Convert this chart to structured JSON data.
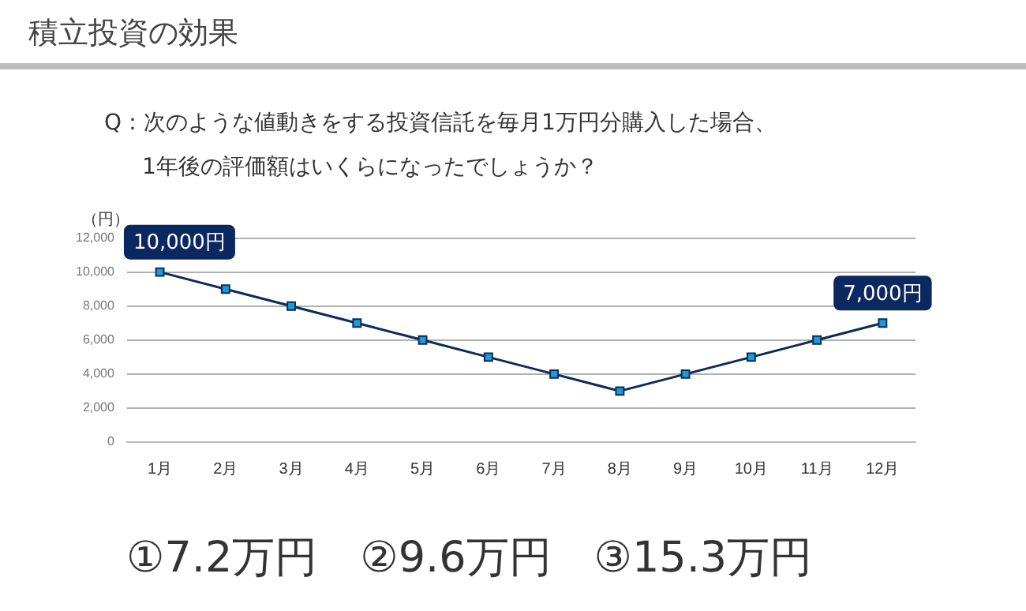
{
  "chart_data": {
    "type": "line",
    "title": "積立投資の効果",
    "subtitle": "Q：次のような値動きをする投資信託を毎月1万円分購入した場合、\n1年後の評価額はいくらになったでしょうか？",
    "ylabel": "（円）",
    "categories": [
      "1月",
      "2月",
      "3月",
      "4月",
      "5月",
      "6月",
      "7月",
      "8月",
      "9月",
      "10月",
      "11月",
      "12月"
    ],
    "series": [
      {
        "color": "#0d2a5a",
        "values": [
          10000,
          9000,
          8000,
          7000,
          6000,
          5000,
          4000,
          3000,
          4000,
          5000,
          6000,
          7000
        ]
      }
    ],
    "ylim": [
      0,
      12000
    ],
    "yticks": [
      0,
      {
        "value": 2000,
        "label": "2,000"
      },
      {
        "value": 4000,
        "label": "4,000"
      },
      {
        "value": 6000,
        "label": "6,000"
      },
      {
        "value": 8000,
        "label": "8,000"
      },
      {
        "value": 10000,
        "label": "10,000"
      },
      {
        "value": 12000,
        "label": "12,000"
      }
    ],
    "grid": "y",
    "legend": false,
    "marker": "square",
    "line_style": "solid",
    "annotations": [
      {
        "text": "10,000円",
        "x": "1月",
        "y": 10000
      },
      {
        "text": "7,000円",
        "x": "12月",
        "y": 7000
      },
      "①7.2万円　②9.6万円　③15.3万円"
    ]
  }
}
